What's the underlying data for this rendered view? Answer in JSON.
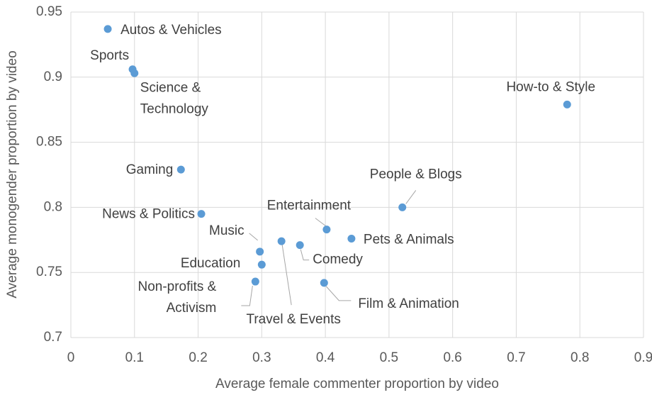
{
  "chart_data": {
    "type": "scatter",
    "x_label": "Average female commenter proportion by video",
    "y_label": "Average monogender proportion by video",
    "color": "#5b9bd5",
    "grid": true,
    "xlim": [
      0,
      0.9
    ],
    "xticks": [
      0,
      0.1,
      0.2,
      0.3,
      0.4,
      0.5,
      0.6,
      0.7,
      0.8,
      0.9
    ],
    "ylim": [
      0.7,
      0.95
    ],
    "yticks": [
      0.7,
      0.75,
      0.8,
      0.85,
      0.9,
      0.95
    ],
    "labels": [
      [
        "Autos & Vehicles"
      ],
      [
        "Sports"
      ],
      [
        "Science &",
        "Technology"
      ],
      [
        "How-to & Style"
      ],
      [
        "Gaming"
      ],
      [
        "People & Blogs"
      ],
      [
        "News & Politics"
      ],
      [
        "Entertainment"
      ],
      [
        "Pets & Animals"
      ],
      [
        "Travel & Events"
      ],
      [
        "Comedy"
      ],
      [
        "Music"
      ],
      [
        "Education"
      ],
      [
        "Non-profits &",
        "Activism"
      ],
      [
        "Film & Animation"
      ]
    ],
    "x": [
      0.058,
      0.097,
      0.1,
      0.78,
      0.173,
      0.521,
      0.205,
      0.402,
      0.441,
      0.331,
      0.36,
      0.297,
      0.3,
      0.29,
      0.398
    ],
    "y": [
      0.937,
      0.906,
      0.903,
      0.879,
      0.829,
      0.8,
      0.795,
      0.783,
      0.776,
      0.774,
      0.771,
      0.766,
      0.756,
      0.743,
      0.742
    ]
  }
}
